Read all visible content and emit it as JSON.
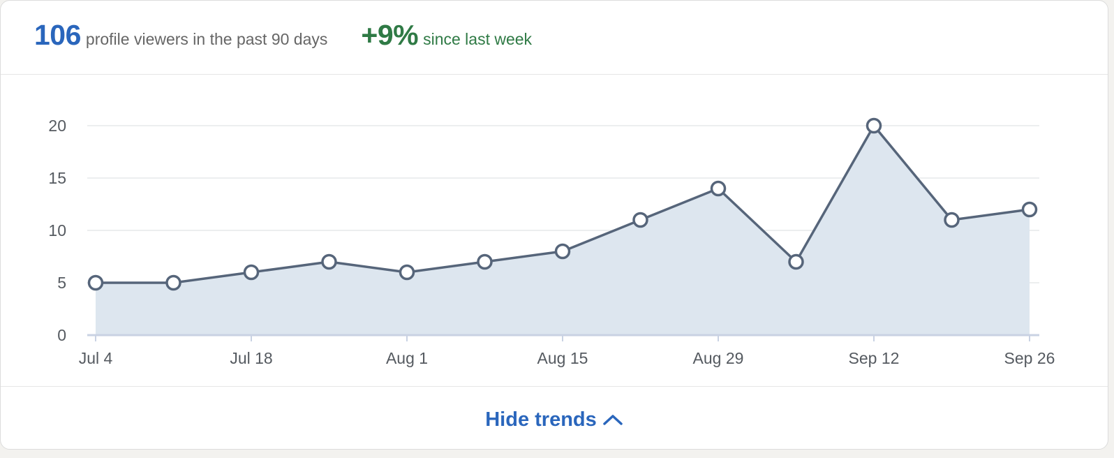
{
  "summary": {
    "viewers_count": "106",
    "viewers_label": "profile viewers in the past 90 days",
    "change_value": "+9%",
    "change_label": "since last week"
  },
  "toggle": {
    "label": "Hide trends",
    "icon": "chevron-up-icon"
  },
  "colors": {
    "accent": "#2a66bc",
    "positive": "#2f7a45",
    "line": "#56657a",
    "fill": "#dde6ef",
    "grid": "#e6e8ea",
    "baseline": "#c9d2e3"
  },
  "chart_data": {
    "type": "area",
    "x": [
      "Jul 4",
      "Jul 11",
      "Jul 18",
      "Jul 25",
      "Aug 1",
      "Aug 8",
      "Aug 15",
      "Aug 22",
      "Aug 29",
      "Sep 5",
      "Sep 12",
      "Sep 19",
      "Sep 26"
    ],
    "values": [
      5,
      5,
      6,
      7,
      6,
      7,
      8,
      11,
      14,
      7,
      20,
      11,
      12
    ],
    "xticks": [
      "Jul 4",
      "Jul 18",
      "Aug 1",
      "Aug 15",
      "Aug 29",
      "Sep 12",
      "Sep 26"
    ],
    "yticks": [
      0,
      5,
      10,
      15,
      20
    ],
    "ylim": [
      0,
      20
    ],
    "grid": true,
    "markers": true,
    "title": "",
    "xlabel": "",
    "ylabel": ""
  }
}
